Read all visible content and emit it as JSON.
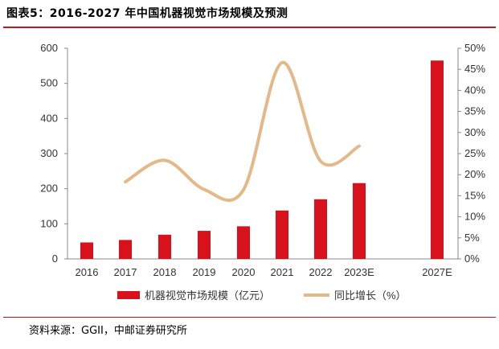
{
  "header": {
    "title": "图表5：2016-2027 年中国机器视觉市场规模及预测"
  },
  "footer": {
    "source": "资料来源：GGII，中邮证券研究所"
  },
  "colors": {
    "bar": "#d7121d",
    "line": "#e3b98a",
    "accent": "#b41f24"
  },
  "chart_data": {
    "type": "bar",
    "title": "2016-2027 年中国机器视觉市场规模及预测",
    "categories": [
      "2016",
      "2017",
      "2018",
      "2019",
      "2020",
      "2021",
      "2022",
      "2023E",
      "2027E"
    ],
    "series": [
      {
        "name": "机器视觉市场规模（亿元）",
        "type": "bar",
        "axis": "left",
        "values": [
          47,
          54,
          69,
          80,
          93,
          138,
          170,
          216,
          565
        ]
      },
      {
        "name": "同比增长（%）",
        "type": "line",
        "smooth": true,
        "axis": "right",
        "values": [
          null,
          18.3,
          23.4,
          16.5,
          16.4,
          46.6,
          23.2,
          26.8,
          null
        ]
      }
    ],
    "y_left": {
      "min": 0,
      "max": 600,
      "ticks": [
        "0",
        "100",
        "200",
        "300",
        "400",
        "500",
        "600"
      ]
    },
    "y_right": {
      "min": 0,
      "max": 50,
      "ticks": [
        "0%",
        "5%",
        "10%",
        "15%",
        "20%",
        "25%",
        "30%",
        "35%",
        "40%",
        "45%",
        "50%"
      ]
    },
    "legend": {
      "position": "bottom"
    }
  }
}
